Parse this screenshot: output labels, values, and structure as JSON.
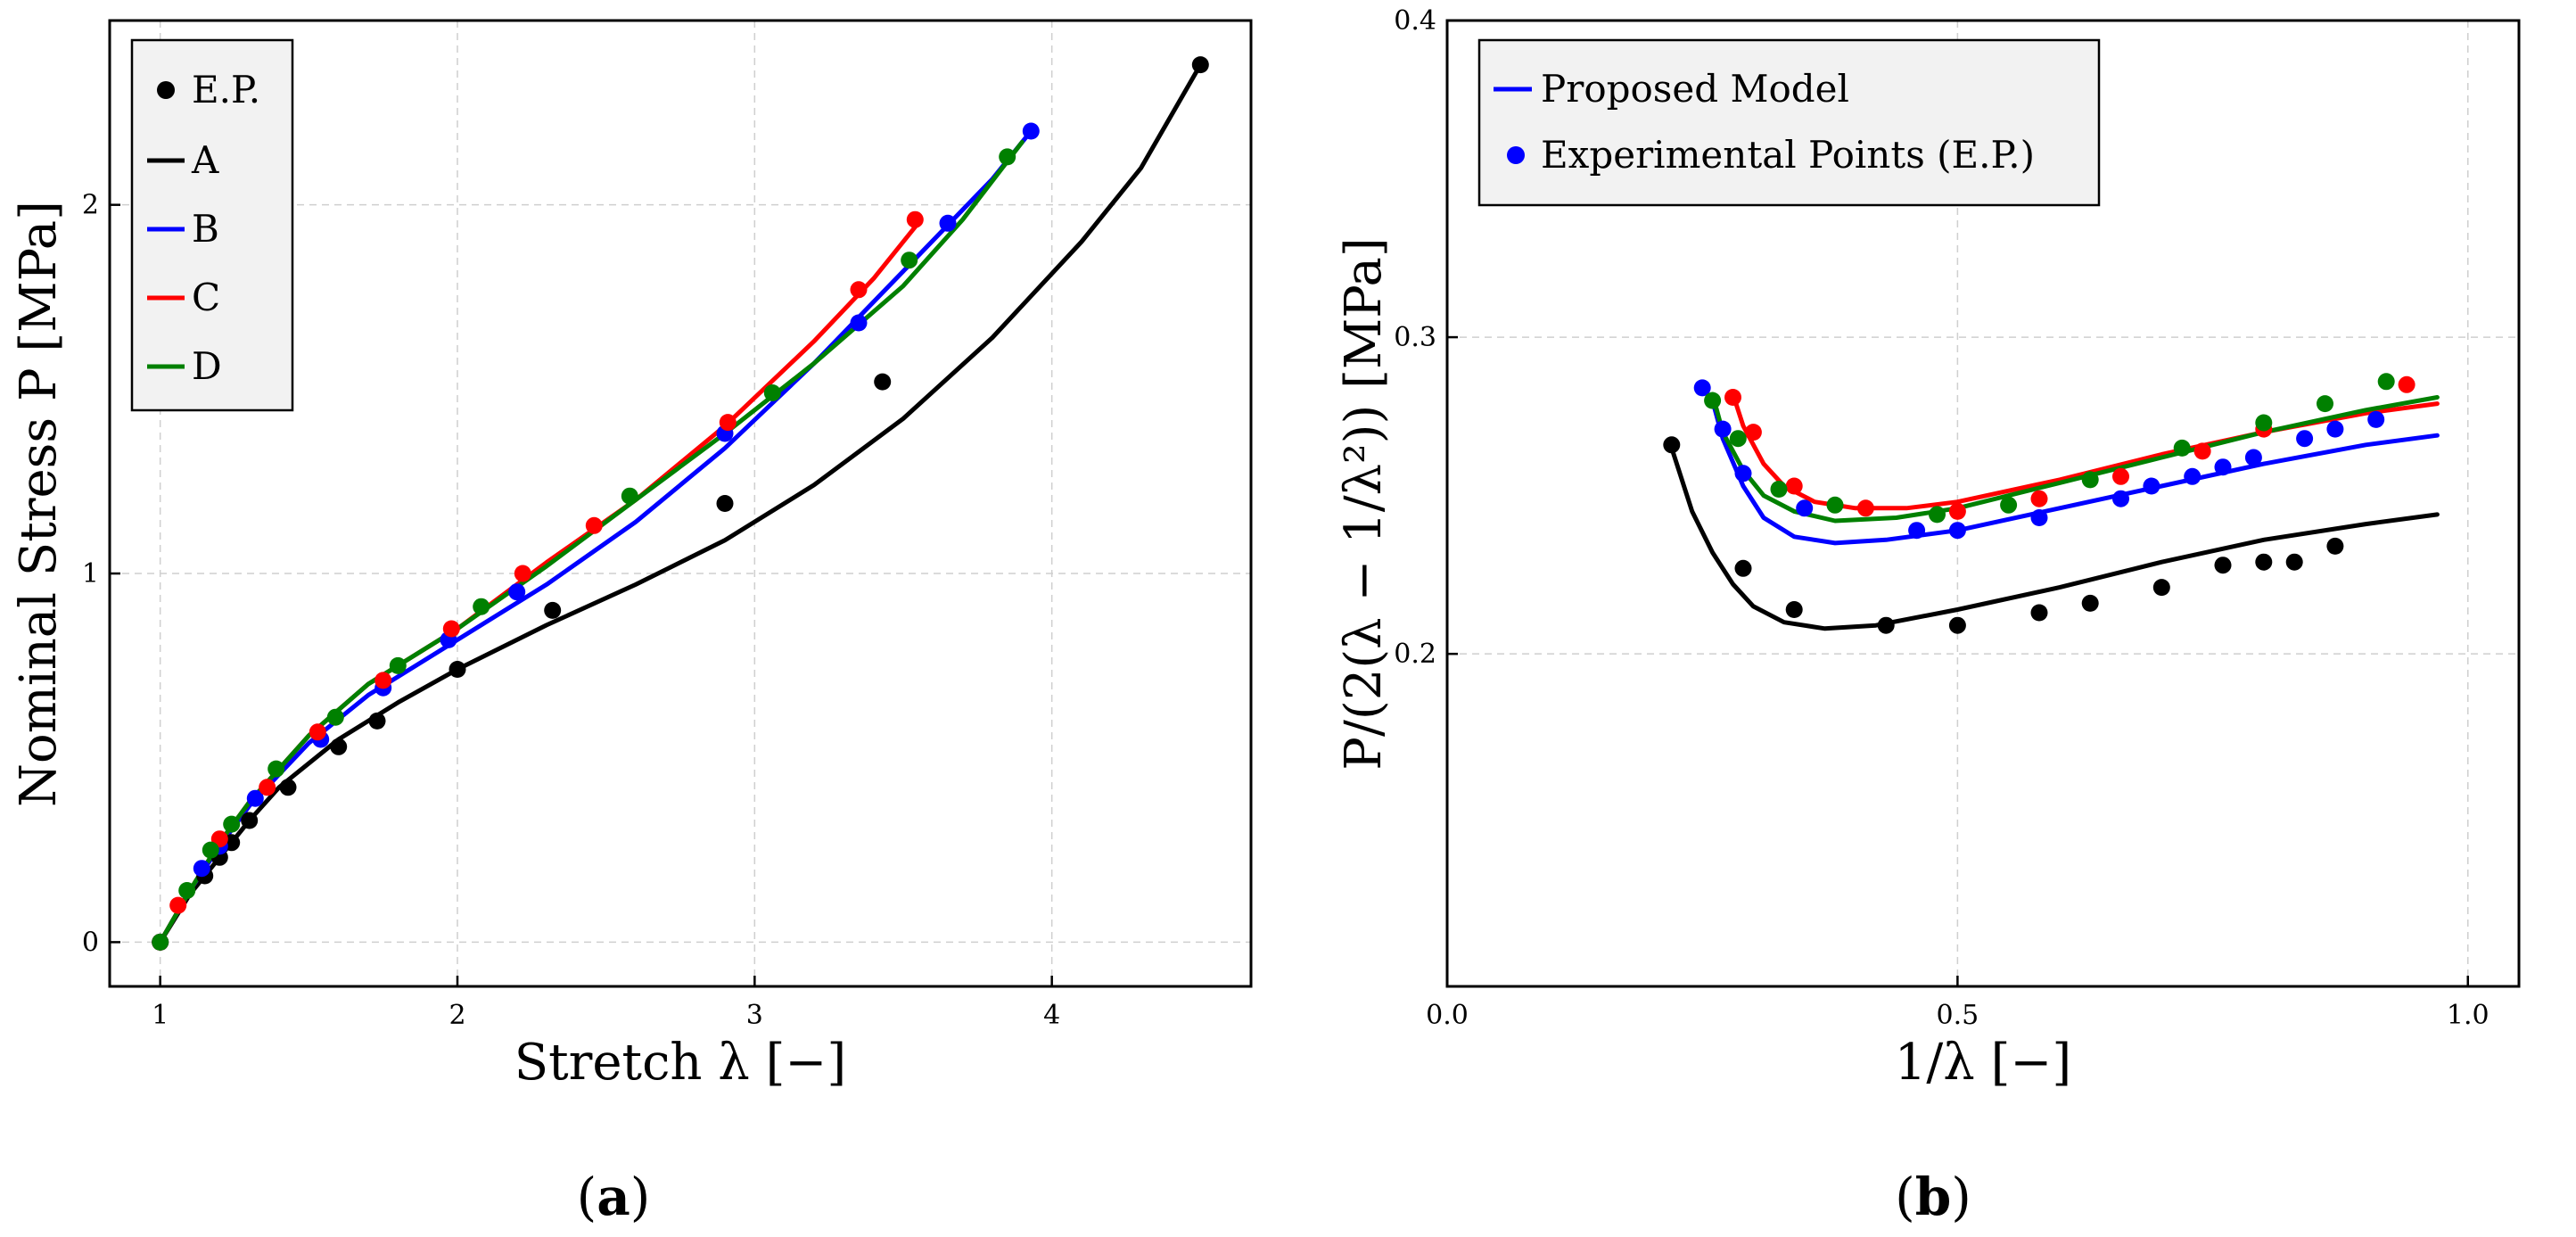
{
  "chart_data": [
    {
      "id": "a",
      "type": "line",
      "caption_open": "(",
      "caption_letter": "a",
      "caption_close": ")",
      "xlabel": "Stretch λ [−]",
      "ylabel": "Nominal Stress P [MPa]",
      "xlim": [
        0.83,
        4.67
      ],
      "ylim": [
        -0.12,
        2.5
      ],
      "xticks": [
        1,
        2,
        3,
        4
      ],
      "xtick_labels": [
        "1",
        "2",
        "3",
        "4"
      ],
      "yticks": [
        0,
        1,
        2
      ],
      "ytick_labels": [
        "0",
        "1",
        "2"
      ],
      "grid": true,
      "legend_position": "top-left",
      "legend_entries": [
        {
          "label": "E.P.",
          "kind": "marker",
          "color": "#000000"
        },
        {
          "label": "A",
          "kind": "line",
          "color": "#000000"
        },
        {
          "label": "B",
          "kind": "line",
          "color": "#0000ff"
        },
        {
          "label": "C",
          "kind": "line",
          "color": "#ff0000"
        },
        {
          "label": "D",
          "kind": "line",
          "color": "#008000"
        }
      ],
      "series": [
        {
          "name": "A",
          "color": "#000000",
          "curve": [
            [
              1,
              0
            ],
            [
              1.1,
              0.13
            ],
            [
              1.2,
              0.23
            ],
            [
              1.3,
              0.33
            ],
            [
              1.4,
              0.42
            ],
            [
              1.6,
              0.55
            ],
            [
              1.8,
              0.65
            ],
            [
              2.0,
              0.74
            ],
            [
              2.3,
              0.86
            ],
            [
              2.6,
              0.97
            ],
            [
              2.9,
              1.09
            ],
            [
              3.2,
              1.24
            ],
            [
              3.5,
              1.42
            ],
            [
              3.8,
              1.64
            ],
            [
              4.1,
              1.9
            ],
            [
              4.3,
              2.1
            ],
            [
              4.5,
              2.38
            ]
          ],
          "points": [
            [
              1,
              0
            ],
            [
              1.15,
              0.18
            ],
            [
              1.2,
              0.23
            ],
            [
              1.24,
              0.27
            ],
            [
              1.3,
              0.33
            ],
            [
              1.43,
              0.42
            ],
            [
              1.6,
              0.53
            ],
            [
              1.73,
              0.6
            ],
            [
              2.0,
              0.74
            ],
            [
              2.32,
              0.9
            ],
            [
              2.9,
              1.19
            ],
            [
              3.43,
              1.52
            ],
            [
              4.5,
              2.38
            ]
          ]
        },
        {
          "name": "B",
          "color": "#0000ff",
          "curve": [
            [
              1,
              0
            ],
            [
              1.1,
              0.14
            ],
            [
              1.2,
              0.26
            ],
            [
              1.3,
              0.37
            ],
            [
              1.5,
              0.54
            ],
            [
              1.7,
              0.67
            ],
            [
              2.0,
              0.82
            ],
            [
              2.3,
              0.97
            ],
            [
              2.6,
              1.14
            ],
            [
              2.9,
              1.34
            ],
            [
              3.2,
              1.57
            ],
            [
              3.5,
              1.82
            ],
            [
              3.8,
              2.07
            ],
            [
              3.93,
              2.2
            ]
          ],
          "points": [
            [
              1,
              0
            ],
            [
              1.14,
              0.2
            ],
            [
              1.2,
              0.26
            ],
            [
              1.32,
              0.39
            ],
            [
              1.54,
              0.55
            ],
            [
              1.75,
              0.69
            ],
            [
              1.97,
              0.82
            ],
            [
              2.2,
              0.95
            ],
            [
              2.9,
              1.38
            ],
            [
              3.35,
              1.68
            ],
            [
              3.65,
              1.95
            ],
            [
              3.93,
              2.2
            ]
          ]
        },
        {
          "name": "C",
          "color": "#ff0000",
          "curve": [
            [
              1,
              0
            ],
            [
              1.1,
              0.14
            ],
            [
              1.2,
              0.27
            ],
            [
              1.3,
              0.38
            ],
            [
              1.5,
              0.56
            ],
            [
              1.7,
              0.7
            ],
            [
              2.0,
              0.85
            ],
            [
              2.3,
              1.03
            ],
            [
              2.6,
              1.2
            ],
            [
              2.9,
              1.4
            ],
            [
              3.2,
              1.63
            ],
            [
              3.4,
              1.8
            ],
            [
              3.55,
              1.95
            ]
          ],
          "points": [
            [
              1,
              0
            ],
            [
              1.06,
              0.1
            ],
            [
              1.2,
              0.28
            ],
            [
              1.36,
              0.42
            ],
            [
              1.53,
              0.57
            ],
            [
              1.75,
              0.71
            ],
            [
              1.98,
              0.85
            ],
            [
              2.22,
              1.0
            ],
            [
              2.46,
              1.13
            ],
            [
              2.91,
              1.41
            ],
            [
              3.35,
              1.77
            ],
            [
              3.54,
              1.96
            ]
          ]
        },
        {
          "name": "D",
          "color": "#008000",
          "curve": [
            [
              1,
              0
            ],
            [
              1.1,
              0.14
            ],
            [
              1.2,
              0.27
            ],
            [
              1.3,
              0.38
            ],
            [
              1.5,
              0.56
            ],
            [
              1.7,
              0.7
            ],
            [
              2.0,
              0.85
            ],
            [
              2.3,
              1.02
            ],
            [
              2.6,
              1.2
            ],
            [
              2.9,
              1.38
            ],
            [
              3.2,
              1.57
            ],
            [
              3.5,
              1.78
            ],
            [
              3.7,
              1.96
            ],
            [
              3.9,
              2.17
            ]
          ],
          "points": [
            [
              1,
              0
            ],
            [
              1.09,
              0.14
            ],
            [
              1.17,
              0.25
            ],
            [
              1.24,
              0.32
            ],
            [
              1.39,
              0.47
            ],
            [
              1.59,
              0.61
            ],
            [
              1.8,
              0.75
            ],
            [
              2.08,
              0.91
            ],
            [
              2.58,
              1.21
            ],
            [
              3.06,
              1.49
            ],
            [
              3.52,
              1.85
            ],
            [
              3.85,
              2.13
            ]
          ]
        }
      ]
    },
    {
      "id": "b",
      "type": "line",
      "caption_open": "(",
      "caption_letter": "b",
      "caption_close": ")",
      "xlabel": "1/λ [−]",
      "ylabel": "P/(2(λ − 1/λ²)) [MPa]",
      "xlim": [
        0.0,
        1.05
      ],
      "ylim": [
        0.095,
        0.4
      ],
      "xticks": [
        0.0,
        0.5,
        1.0
      ],
      "xtick_labels": [
        "0.0",
        "0.5",
        "1.0"
      ],
      "yticks": [
        0.2,
        0.3,
        0.4
      ],
      "ytick_labels": [
        "0.2",
        "0.3",
        "0.4"
      ],
      "grid": true,
      "legend_position": "top-left",
      "legend_entries": [
        {
          "label": "Proposed Model",
          "kind": "line",
          "color": "#0000ff"
        },
        {
          "label": "Experimental Points (E.P.)",
          "kind": "marker",
          "color": "#0000ff"
        }
      ],
      "series": [
        {
          "name": "A",
          "color": "#000000",
          "curve": [
            [
              0.22,
              0.265
            ],
            [
              0.24,
              0.245
            ],
            [
              0.26,
              0.232
            ],
            [
              0.28,
              0.222
            ],
            [
              0.3,
              0.215
            ],
            [
              0.33,
              0.21
            ],
            [
              0.37,
              0.208
            ],
            [
              0.42,
              0.209
            ],
            [
              0.5,
              0.214
            ],
            [
              0.6,
              0.221
            ],
            [
              0.7,
              0.229
            ],
            [
              0.8,
              0.236
            ],
            [
              0.9,
              0.241
            ],
            [
              0.97,
              0.244
            ]
          ],
          "points": [
            [
              0.22,
              0.266
            ],
            [
              0.29,
              0.227
            ],
            [
              0.34,
              0.214
            ],
            [
              0.43,
              0.209
            ],
            [
              0.5,
              0.209
            ],
            [
              0.58,
              0.213
            ],
            [
              0.63,
              0.216
            ],
            [
              0.7,
              0.221
            ],
            [
              0.76,
              0.228
            ],
            [
              0.8,
              0.229
            ],
            [
              0.83,
              0.229
            ],
            [
              0.87,
              0.234
            ]
          ]
        },
        {
          "name": "B",
          "color": "#0000ff",
          "curve": [
            [
              0.26,
              0.28
            ],
            [
              0.27,
              0.268
            ],
            [
              0.29,
              0.253
            ],
            [
              0.31,
              0.243
            ],
            [
              0.34,
              0.237
            ],
            [
              0.38,
              0.235
            ],
            [
              0.43,
              0.236
            ],
            [
              0.5,
              0.239
            ],
            [
              0.6,
              0.246
            ],
            [
              0.7,
              0.253
            ],
            [
              0.8,
              0.26
            ],
            [
              0.9,
              0.266
            ],
            [
              0.97,
              0.269
            ]
          ],
          "points": [
            [
              0.25,
              0.284
            ],
            [
              0.27,
              0.271
            ],
            [
              0.29,
              0.257
            ],
            [
              0.35,
              0.246
            ],
            [
              0.46,
              0.239
            ],
            [
              0.5,
              0.239
            ],
            [
              0.58,
              0.243
            ],
            [
              0.66,
              0.249
            ],
            [
              0.69,
              0.253
            ],
            [
              0.73,
              0.256
            ],
            [
              0.76,
              0.259
            ],
            [
              0.79,
              0.262
            ],
            [
              0.84,
              0.268
            ],
            [
              0.87,
              0.271
            ],
            [
              0.91,
              0.274
            ]
          ]
        },
        {
          "name": "C",
          "color": "#ff0000",
          "curve": [
            [
              0.28,
              0.282
            ],
            [
              0.29,
              0.272
            ],
            [
              0.31,
              0.26
            ],
            [
              0.33,
              0.253
            ],
            [
              0.36,
              0.248
            ],
            [
              0.4,
              0.246
            ],
            [
              0.45,
              0.246
            ],
            [
              0.5,
              0.248
            ],
            [
              0.6,
              0.255
            ],
            [
              0.7,
              0.263
            ],
            [
              0.8,
              0.27
            ],
            [
              0.9,
              0.276
            ],
            [
              0.97,
              0.279
            ]
          ],
          "points": [
            [
              0.28,
              0.281
            ],
            [
              0.3,
              0.27
            ],
            [
              0.34,
              0.253
            ],
            [
              0.41,
              0.246
            ],
            [
              0.5,
              0.245
            ],
            [
              0.58,
              0.249
            ],
            [
              0.66,
              0.256
            ],
            [
              0.74,
              0.264
            ],
            [
              0.8,
              0.271
            ],
            [
              0.94,
              0.285
            ]
          ]
        },
        {
          "name": "D",
          "color": "#008000",
          "curve": [
            [
              0.26,
              0.282
            ],
            [
              0.27,
              0.27
            ],
            [
              0.29,
              0.258
            ],
            [
              0.31,
              0.25
            ],
            [
              0.34,
              0.245
            ],
            [
              0.38,
              0.242
            ],
            [
              0.44,
              0.243
            ],
            [
              0.5,
              0.246
            ],
            [
              0.6,
              0.254
            ],
            [
              0.7,
              0.262
            ],
            [
              0.8,
              0.27
            ],
            [
              0.9,
              0.277
            ],
            [
              0.97,
              0.281
            ]
          ],
          "points": [
            [
              0.26,
              0.28
            ],
            [
              0.285,
              0.268
            ],
            [
              0.325,
              0.252
            ],
            [
              0.38,
              0.247
            ],
            [
              0.48,
              0.244
            ],
            [
              0.55,
              0.247
            ],
            [
              0.63,
              0.255
            ],
            [
              0.72,
              0.265
            ],
            [
              0.8,
              0.273
            ],
            [
              0.86,
              0.279
            ],
            [
              0.92,
              0.286
            ]
          ]
        }
      ]
    }
  ]
}
